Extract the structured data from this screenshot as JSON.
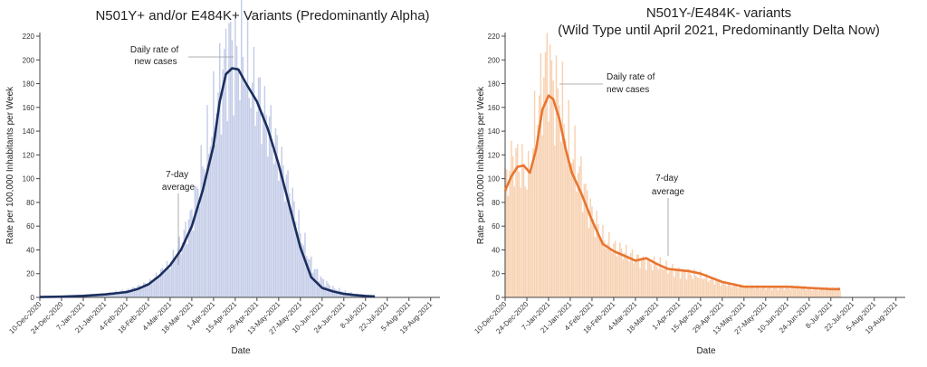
{
  "chart_data": [
    {
      "type": "bar+line",
      "title_lines": [
        "N501Y+ and/or E484K+ Variants (Predominantly Alpha)"
      ],
      "xlabel": "Date",
      "ylabel": "Rate per 100,000 Inhabitants per Week",
      "ylim": [
        0,
        220
      ],
      "yticks": [
        0,
        20,
        40,
        60,
        80,
        100,
        120,
        140,
        160,
        180,
        200,
        220
      ],
      "x_range": [
        "2020-12-10",
        "2021-08-25"
      ],
      "x_tick_labels": [
        "10-Dec-2020",
        "24-Dec-2020",
        "7-Jan-2021",
        "21-Jan-2021",
        "4-Feb-2021",
        "18-Feb-2021",
        "4-Mar-2021",
        "18-Mar-2021",
        "1-Apr-2021",
        "15-Apr-2021",
        "29-Apr-2021",
        "13-May-2021",
        "27-May-2021",
        "10-Jun-2021",
        "24-Jun-2021",
        "8-Jul-2021",
        "22-Jul-2021",
        "5-Aug-2021",
        "19-Aug-2021"
      ],
      "bar_color": "#c5cde8",
      "line_color": "#1b2f5e",
      "daily_x": [
        "2020-12-10",
        "2021-01-01",
        "2021-01-21",
        "2021-02-04",
        "2021-02-18",
        "2021-03-04",
        "2021-03-11",
        "2021-03-18",
        "2021-03-25",
        "2021-04-01",
        "2021-04-08",
        "2021-04-12",
        "2021-04-15",
        "2021-04-20",
        "2021-04-25",
        "2021-05-01",
        "2021-05-08",
        "2021-05-13",
        "2021-05-20",
        "2021-05-27",
        "2021-06-03",
        "2021-06-10",
        "2021-06-17",
        "2021-06-24",
        "2021-07-01",
        "2021-07-08",
        "2021-07-14"
      ],
      "daily_y": [
        0.3,
        1,
        3,
        6,
        12,
        28,
        45,
        70,
        110,
        150,
        195,
        214,
        200,
        205,
        180,
        165,
        140,
        118,
        90,
        55,
        28,
        15,
        8,
        5,
        3,
        2,
        1
      ],
      "avg_x": [
        "2020-12-10",
        "2020-12-24",
        "2021-01-07",
        "2021-01-21",
        "2021-02-04",
        "2021-02-11",
        "2021-02-18",
        "2021-02-25",
        "2021-03-04",
        "2021-03-11",
        "2021-03-18",
        "2021-03-25",
        "2021-04-01",
        "2021-04-05",
        "2021-04-09",
        "2021-04-13",
        "2021-04-17",
        "2021-04-22",
        "2021-04-29",
        "2021-05-06",
        "2021-05-13",
        "2021-05-20",
        "2021-05-27",
        "2021-06-03",
        "2021-06-10",
        "2021-06-17",
        "2021-06-24",
        "2021-07-01",
        "2021-07-08",
        "2021-07-14"
      ],
      "avg_y": [
        0.3,
        0.6,
        1.3,
        2.5,
        4.5,
        7,
        11,
        18,
        27,
        40,
        60,
        90,
        128,
        165,
        188,
        193,
        192,
        180,
        165,
        142,
        112,
        77,
        42,
        17,
        8,
        5,
        3,
        2,
        1.2,
        0.8
      ],
      "annotations": [
        {
          "text_lines": [
            "Daily rate of",
            "new cases"
          ]
        },
        {
          "text_lines": [
            "7-day",
            "average"
          ]
        }
      ]
    },
    {
      "type": "bar+line",
      "title_lines": [
        "N501Y-/E484K- variants",
        "(Wild Type until April 2021, Predominantly Delta Now)"
      ],
      "xlabel": "Date",
      "ylabel": "Rate per 100,000 Inhabitants per Week",
      "ylim": [
        0,
        220
      ],
      "yticks": [
        0,
        20,
        40,
        60,
        80,
        100,
        120,
        140,
        160,
        180,
        200,
        220
      ],
      "x_range": [
        "2020-12-10",
        "2021-08-25"
      ],
      "x_tick_labels": [
        "10-Dec-2020",
        "24-Dec-2020",
        "7-Jan-2021",
        "21-Jan-2021",
        "4-Feb-2021",
        "18-Feb-2021",
        "4-Mar-2021",
        "18-Mar-2021",
        "1-Apr-2021",
        "15-Apr-2021",
        "29-Apr-2021",
        "13-May-2021",
        "27-May-2021",
        "10-Jun-2021",
        "24-Jun-2021",
        "8-Jul-2021",
        "22-Jul-2021",
        "5-Aug-2021",
        "19-Aug-2021"
      ],
      "bar_color": "#f7d2b3",
      "line_color": "#e87530",
      "daily_x": [
        "2020-12-10",
        "2020-12-15",
        "2020-12-20",
        "2020-12-25",
        "2020-12-30",
        "2021-01-04",
        "2021-01-07",
        "2021-01-10",
        "2021-01-15",
        "2021-01-20",
        "2021-01-27",
        "2021-02-04",
        "2021-02-11",
        "2021-02-18",
        "2021-02-25",
        "2021-03-04",
        "2021-03-11",
        "2021-03-18",
        "2021-03-25",
        "2021-04-01",
        "2021-04-15",
        "2021-04-29",
        "2021-05-13",
        "2021-05-27",
        "2021-06-10",
        "2021-06-24",
        "2021-07-08",
        "2021-07-14"
      ],
      "daily_y": [
        95,
        118,
        112,
        100,
        150,
        185,
        203,
        175,
        165,
        130,
        105,
        70,
        50,
        42,
        38,
        33,
        30,
        28,
        24,
        22,
        18,
        12,
        9,
        8,
        8,
        8,
        7,
        7
      ],
      "avg_x": [
        "2020-12-10",
        "2020-12-14",
        "2020-12-18",
        "2020-12-22",
        "2020-12-26",
        "2020-12-30",
        "2021-01-03",
        "2021-01-07",
        "2021-01-10",
        "2021-01-14",
        "2021-01-18",
        "2021-01-22",
        "2021-01-28",
        "2021-02-04",
        "2021-02-11",
        "2021-02-18",
        "2021-02-25",
        "2021-03-04",
        "2021-03-11",
        "2021-03-18",
        "2021-03-25",
        "2021-04-01",
        "2021-04-08",
        "2021-04-15",
        "2021-04-29",
        "2021-05-13",
        "2021-05-27",
        "2021-06-10",
        "2021-06-24",
        "2021-07-08",
        "2021-07-14"
      ],
      "avg_y": [
        90,
        102,
        110,
        111,
        105,
        125,
        158,
        170,
        167,
        150,
        125,
        105,
        88,
        65,
        45,
        39,
        35,
        31,
        33,
        28,
        24,
        23,
        22,
        20,
        13,
        9,
        9,
        9,
        8,
        7,
        7
      ],
      "annotations": [
        {
          "text_lines": [
            "Daily rate of",
            "new cases"
          ]
        },
        {
          "text_lines": [
            "7-day",
            "average"
          ]
        }
      ]
    }
  ]
}
